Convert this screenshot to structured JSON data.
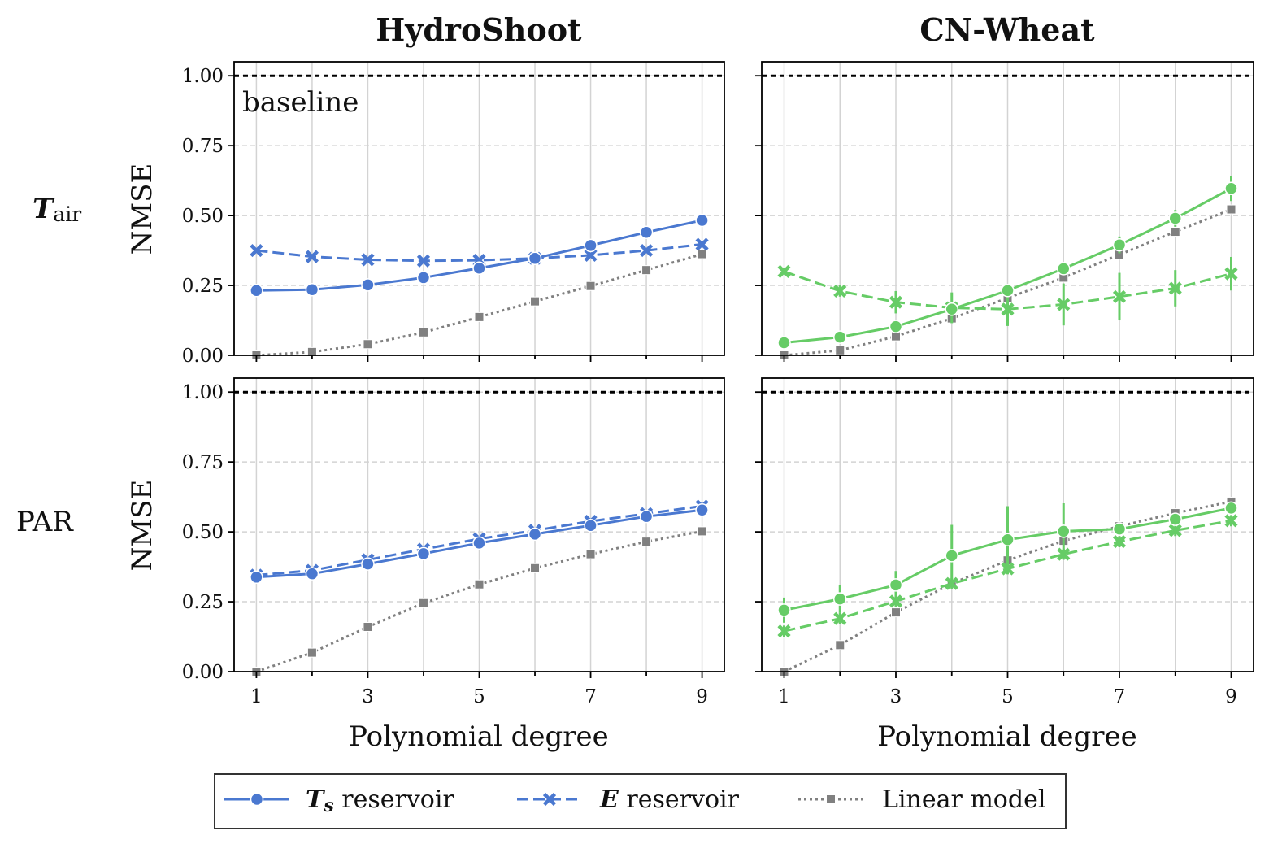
{
  "figure": {
    "column_titles": [
      "HydroShoot",
      "CN-Wheat"
    ],
    "row_labels": [
      {
        "main": "T",
        "sub": "air"
      },
      {
        "main": "PAR",
        "sub": ""
      }
    ],
    "ylabel": "NMSE",
    "xlabel": "Polynomial degree",
    "baseline_label": "baseline",
    "x_ticks": [
      1,
      3,
      5,
      7,
      9
    ],
    "y_ticks": [
      "0.00",
      "0.25",
      "0.50",
      "0.75",
      "1.00"
    ]
  },
  "legend": {
    "items": [
      {
        "main": "T",
        "sub": "s",
        "rest": " reservoir",
        "marker": "circle",
        "dash": "solid"
      },
      {
        "main": "E",
        "sub": "",
        "rest": " reservoir",
        "marker": "x",
        "dash": "dashed"
      },
      {
        "main": "",
        "sub": "",
        "rest": "Linear model",
        "marker": "square",
        "dash": "dotted"
      }
    ]
  },
  "colors": {
    "blue": "#4a78d0",
    "green": "#66cc66",
    "gray": "#808080",
    "baseline": "#000000"
  },
  "chart_data": [
    {
      "type": "line",
      "panel": "HydroShoot / T_air",
      "xlim": [
        0.6,
        9.4
      ],
      "ylim": [
        0,
        1.05
      ],
      "baseline": 1.0,
      "grid": true,
      "x": [
        1,
        2,
        3,
        4,
        5,
        6,
        7,
        8,
        9
      ],
      "series": [
        {
          "legend_ref": 0,
          "values": [
            0.232,
            0.235,
            0.252,
            0.278,
            0.312,
            0.347,
            0.393,
            0.44,
            0.483
          ]
        },
        {
          "legend_ref": 1,
          "values": [
            0.375,
            0.353,
            0.342,
            0.338,
            0.34,
            0.347,
            0.358,
            0.375,
            0.397
          ]
        },
        {
          "legend_ref": 2,
          "values": [
            0.0,
            0.012,
            0.04,
            0.082,
            0.137,
            0.193,
            0.248,
            0.305,
            0.362
          ]
        }
      ]
    },
    {
      "type": "line",
      "panel": "CN-Wheat / T_air",
      "xlim": [
        0.6,
        9.4
      ],
      "ylim": [
        0,
        1.05
      ],
      "baseline": 1.0,
      "grid": true,
      "x": [
        1,
        2,
        3,
        4,
        5,
        6,
        7,
        8,
        9
      ],
      "series": [
        {
          "legend_ref": 0,
          "values": [
            0.045,
            0.065,
            0.103,
            0.165,
            0.232,
            0.31,
            0.395,
            0.49,
            0.597
          ],
          "errors": [
            0.005,
            0.005,
            0.008,
            0.01,
            0.015,
            0.015,
            0.03,
            0.03,
            0.045
          ]
        },
        {
          "legend_ref": 1,
          "values": [
            0.3,
            0.23,
            0.19,
            0.17,
            0.165,
            0.182,
            0.21,
            0.24,
            0.292
          ],
          "errors": [
            0.01,
            0.02,
            0.04,
            0.055,
            0.06,
            0.075,
            0.085,
            0.065,
            0.06
          ]
        },
        {
          "legend_ref": 2,
          "values": [
            0.0,
            0.018,
            0.068,
            0.132,
            0.205,
            0.278,
            0.36,
            0.442,
            0.522
          ]
        }
      ]
    },
    {
      "type": "line",
      "panel": "HydroShoot / PAR",
      "xlim": [
        0.6,
        9.4
      ],
      "ylim": [
        0,
        1.05
      ],
      "baseline": 1.0,
      "grid": true,
      "x": [
        1,
        2,
        3,
        4,
        5,
        6,
        7,
        8,
        9
      ],
      "series": [
        {
          "legend_ref": 0,
          "values": [
            0.338,
            0.35,
            0.385,
            0.422,
            0.46,
            0.492,
            0.523,
            0.555,
            0.578
          ]
        },
        {
          "legend_ref": 1,
          "values": [
            0.345,
            0.362,
            0.4,
            0.438,
            0.475,
            0.505,
            0.538,
            0.565,
            0.592
          ]
        },
        {
          "legend_ref": 2,
          "values": [
            0.0,
            0.068,
            0.16,
            0.245,
            0.312,
            0.37,
            0.42,
            0.465,
            0.502
          ]
        }
      ]
    },
    {
      "type": "line",
      "panel": "CN-Wheat / PAR",
      "xlim": [
        0.6,
        9.4
      ],
      "ylim": [
        0,
        1.05
      ],
      "baseline": 1.0,
      "grid": true,
      "x": [
        1,
        2,
        3,
        4,
        5,
        6,
        7,
        8,
        9
      ],
      "series": [
        {
          "legend_ref": 0,
          "values": [
            0.22,
            0.26,
            0.31,
            0.415,
            0.472,
            0.502,
            0.51,
            0.545,
            0.585
          ],
          "errors": [
            0.045,
            0.05,
            0.05,
            0.11,
            0.12,
            0.1,
            0.01,
            0.015,
            0.02
          ]
        },
        {
          "legend_ref": 1,
          "values": [
            0.145,
            0.19,
            0.252,
            0.315,
            0.368,
            0.42,
            0.465,
            0.505,
            0.54
          ],
          "errors": [
            0.02,
            0.02,
            0.02,
            0.02,
            0.02,
            0.02,
            0.02,
            0.02,
            0.02
          ]
        },
        {
          "legend_ref": 2,
          "values": [
            0.0,
            0.095,
            0.212,
            0.315,
            0.398,
            0.468,
            0.52,
            0.567,
            0.608
          ]
        }
      ]
    }
  ]
}
